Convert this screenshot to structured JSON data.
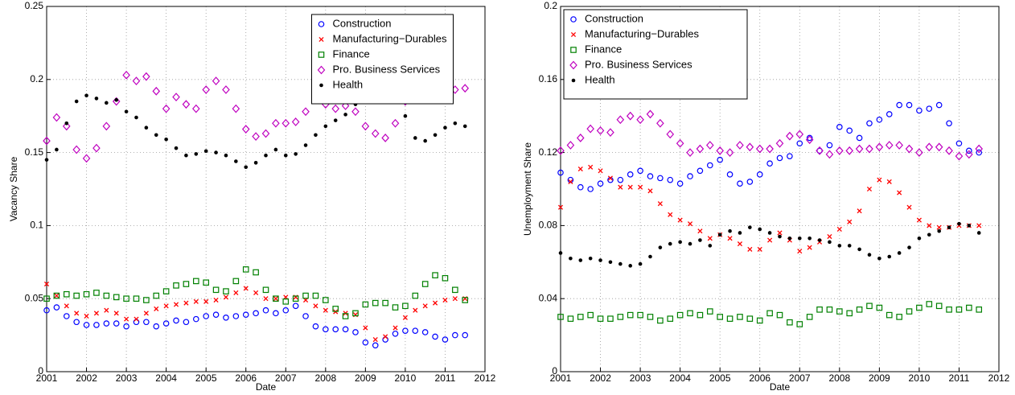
{
  "chart_data": [
    {
      "type": "scatter",
      "xlabel": "Date",
      "ylabel": "Vacancy Share",
      "xlim": [
        2001,
        2012
      ],
      "xticks": [
        2001,
        2002,
        2003,
        2004,
        2005,
        2006,
        2007,
        2008,
        2009,
        2010,
        2011,
        2012
      ],
      "ylim": [
        0,
        0.25
      ],
      "yticks": [
        0,
        0.05,
        0.1,
        0.15,
        0.2,
        0.25
      ],
      "grid": true,
      "legend_loc": "upper center",
      "x": [
        2001,
        2001.25,
        2001.5,
        2001.75,
        2002,
        2002.25,
        2002.5,
        2002.75,
        2003,
        2003.25,
        2003.5,
        2003.75,
        2004,
        2004.25,
        2004.5,
        2004.75,
        2005,
        2005.25,
        2005.5,
        2005.75,
        2006,
        2006.25,
        2006.5,
        2006.75,
        2007,
        2007.25,
        2007.5,
        2007.75,
        2008,
        2008.25,
        2008.5,
        2008.75,
        2009,
        2009.25,
        2009.5,
        2009.75,
        2010,
        2010.25,
        2010.5,
        2010.75,
        2011,
        2011.25,
        2011.5
      ],
      "series": [
        {
          "name": "Construction",
          "color": "#0000ff",
          "marker": "o",
          "values": [
            0.042,
            0.044,
            0.038,
            0.034,
            0.032,
            0.032,
            0.033,
            0.033,
            0.031,
            0.034,
            0.034,
            0.031,
            0.033,
            0.035,
            0.034,
            0.036,
            0.038,
            0.039,
            0.037,
            0.038,
            0.039,
            0.04,
            0.042,
            0.04,
            0.042,
            0.045,
            0.038,
            0.031,
            0.029,
            0.029,
            0.029,
            0.027,
            0.02,
            0.018,
            0.022,
            0.026,
            0.028,
            0.028,
            0.027,
            0.024,
            0.022,
            0.025,
            0.025
          ]
        },
        {
          "name": "Manufacturing−Durables",
          "color": "#ff0000",
          "marker": "x",
          "values": [
            0.06,
            0.052,
            0.045,
            0.04,
            0.038,
            0.04,
            0.042,
            0.04,
            0.036,
            0.036,
            0.04,
            0.043,
            0.045,
            0.046,
            0.047,
            0.048,
            0.048,
            0.049,
            0.051,
            0.054,
            0.057,
            0.054,
            0.05,
            0.05,
            0.051,
            0.051,
            0.049,
            0.045,
            0.042,
            0.041,
            0.04,
            0.039,
            0.03,
            0.022,
            0.024,
            0.03,
            0.037,
            0.042,
            0.045,
            0.047,
            0.049,
            0.05,
            0.05
          ]
        },
        {
          "name": "Finance",
          "color": "#008000",
          "marker": "s",
          "values": [
            0.05,
            0.052,
            0.053,
            0.052,
            0.053,
            0.054,
            0.052,
            0.051,
            0.05,
            0.05,
            0.049,
            0.052,
            0.055,
            0.059,
            0.06,
            0.062,
            0.061,
            0.056,
            0.055,
            0.062,
            0.07,
            0.068,
            0.056,
            0.05,
            0.048,
            0.05,
            0.052,
            0.052,
            0.049,
            0.043,
            0.038,
            0.04,
            0.046,
            0.047,
            0.047,
            0.044,
            0.045,
            0.052,
            0.06,
            0.066,
            0.064,
            0.056,
            0.049
          ]
        },
        {
          "name": "Pro. Business Services",
          "color": "#bf00bf",
          "marker": "d",
          "values": [
            0.158,
            0.174,
            0.168,
            0.152,
            0.146,
            0.153,
            0.168,
            0.185,
            0.203,
            0.199,
            0.202,
            0.192,
            0.18,
            0.188,
            0.183,
            0.18,
            0.193,
            0.199,
            0.193,
            0.18,
            0.166,
            0.161,
            0.163,
            0.17,
            0.17,
            0.171,
            0.178,
            0.186,
            0.183,
            0.18,
            0.182,
            0.178,
            0.168,
            0.163,
            0.16,
            0.17,
            0.185,
            0.2,
            0.201,
            0.194,
            0.192,
            0.193,
            0.194
          ]
        },
        {
          "name": "Health",
          "color": "#000000",
          "marker": ".",
          "values": [
            0.145,
            0.152,
            0.17,
            0.185,
            0.189,
            0.187,
            0.184,
            0.186,
            0.178,
            0.174,
            0.167,
            0.162,
            0.159,
            0.153,
            0.148,
            0.149,
            0.151,
            0.15,
            0.148,
            0.144,
            0.14,
            0.143,
            0.148,
            0.152,
            0.148,
            0.149,
            0.155,
            0.162,
            0.168,
            0.172,
            0.176,
            0.183,
            0.19,
            0.195,
            0.19,
            0.198,
            0.175,
            0.16,
            0.158,
            0.162,
            0.167,
            0.17,
            0.168
          ]
        }
      ]
    },
    {
      "type": "scatter",
      "xlabel": "Date",
      "ylabel": "Unemployment Share",
      "xlim": [
        2001,
        2012
      ],
      "xticks": [
        2001,
        2002,
        2003,
        2004,
        2005,
        2006,
        2007,
        2008,
        2009,
        2010,
        2011,
        2012
      ],
      "ylim": [
        0,
        0.2
      ],
      "yticks": [
        0,
        0.04,
        0.08,
        0.12,
        0.16,
        0.2
      ],
      "grid": true,
      "legend_loc": "upper left",
      "x": [
        2001,
        2001.25,
        2001.5,
        2001.75,
        2002,
        2002.25,
        2002.5,
        2002.75,
        2003,
        2003.25,
        2003.5,
        2003.75,
        2004,
        2004.25,
        2004.5,
        2004.75,
        2005,
        2005.25,
        2005.5,
        2005.75,
        2006,
        2006.25,
        2006.5,
        2006.75,
        2007,
        2007.25,
        2007.5,
        2007.75,
        2008,
        2008.25,
        2008.5,
        2008.75,
        2009,
        2009.25,
        2009.5,
        2009.75,
        2010,
        2010.25,
        2010.5,
        2010.75,
        2011,
        2011.25,
        2011.5
      ],
      "series": [
        {
          "name": "Construction",
          "color": "#0000ff",
          "marker": "o",
          "values": [
            0.109,
            0.105,
            0.101,
            0.1,
            0.103,
            0.105,
            0.105,
            0.108,
            0.11,
            0.107,
            0.106,
            0.105,
            0.103,
            0.107,
            0.11,
            0.113,
            0.116,
            0.108,
            0.103,
            0.104,
            0.108,
            0.114,
            0.117,
            0.118,
            0.125,
            0.128,
            0.121,
            0.124,
            0.134,
            0.132,
            0.128,
            0.136,
            0.138,
            0.141,
            0.146,
            0.146,
            0.143,
            0.144,
            0.146,
            0.136,
            0.125,
            0.121,
            0.12
          ]
        },
        {
          "name": "Manufacturing−Durables",
          "color": "#ff0000",
          "marker": "x",
          "values": [
            0.09,
            0.104,
            0.111,
            0.112,
            0.11,
            0.106,
            0.101,
            0.101,
            0.101,
            0.099,
            0.092,
            0.086,
            0.083,
            0.081,
            0.077,
            0.073,
            0.075,
            0.073,
            0.07,
            0.067,
            0.067,
            0.072,
            0.076,
            0.072,
            0.066,
            0.068,
            0.071,
            0.074,
            0.078,
            0.082,
            0.088,
            0.1,
            0.105,
            0.104,
            0.098,
            0.09,
            0.083,
            0.08,
            0.079,
            0.079,
            0.08,
            0.08,
            0.08
          ]
        },
        {
          "name": "Finance",
          "color": "#008000",
          "marker": "s",
          "values": [
            0.03,
            0.029,
            0.03,
            0.031,
            0.029,
            0.029,
            0.03,
            0.031,
            0.031,
            0.03,
            0.028,
            0.029,
            0.031,
            0.032,
            0.031,
            0.033,
            0.03,
            0.029,
            0.03,
            0.029,
            0.028,
            0.032,
            0.031,
            0.027,
            0.026,
            0.03,
            0.034,
            0.034,
            0.033,
            0.032,
            0.034,
            0.036,
            0.035,
            0.031,
            0.03,
            0.033,
            0.035,
            0.037,
            0.036,
            0.034,
            0.034,
            0.035,
            0.034
          ]
        },
        {
          "name": "Pro. Business Services",
          "color": "#bf00bf",
          "marker": "d",
          "values": [
            0.121,
            0.124,
            0.128,
            0.133,
            0.132,
            0.131,
            0.138,
            0.14,
            0.138,
            0.141,
            0.136,
            0.13,
            0.125,
            0.12,
            0.122,
            0.124,
            0.121,
            0.12,
            0.124,
            0.123,
            0.122,
            0.122,
            0.125,
            0.129,
            0.13,
            0.127,
            0.121,
            0.119,
            0.121,
            0.121,
            0.122,
            0.122,
            0.123,
            0.124,
            0.124,
            0.122,
            0.12,
            0.123,
            0.123,
            0.121,
            0.118,
            0.119,
            0.122
          ]
        },
        {
          "name": "Health",
          "color": "#000000",
          "marker": ".",
          "values": [
            0.065,
            0.062,
            0.061,
            0.062,
            0.061,
            0.06,
            0.059,
            0.058,
            0.059,
            0.063,
            0.068,
            0.07,
            0.071,
            0.07,
            0.072,
            0.069,
            0.075,
            0.077,
            0.076,
            0.079,
            0.078,
            0.076,
            0.074,
            0.073,
            0.073,
            0.073,
            0.072,
            0.071,
            0.069,
            0.069,
            0.067,
            0.064,
            0.062,
            0.063,
            0.065,
            0.068,
            0.073,
            0.075,
            0.077,
            0.079,
            0.081,
            0.08,
            0.076
          ]
        }
      ]
    }
  ]
}
